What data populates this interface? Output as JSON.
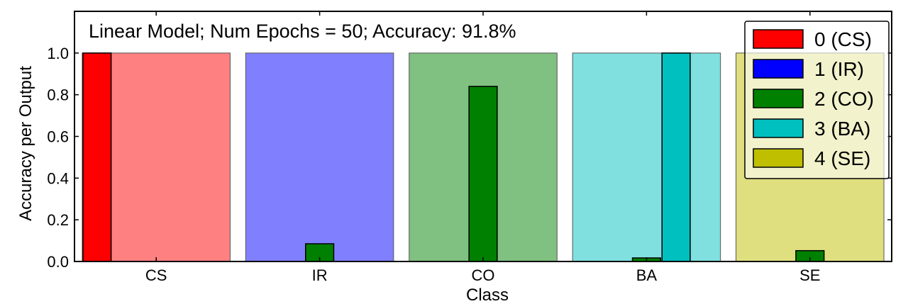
{
  "chart_data": {
    "type": "bar",
    "title": "Linear Model;  Num Epochs = 50;  Accuracy: 91.8%",
    "xlabel": "Class",
    "ylabel": "Accuracy per Output",
    "ylim": [
      0,
      1.2
    ],
    "yticks": [
      "0.0",
      "0.2",
      "0.4",
      "0.6",
      "0.8",
      "1.0"
    ],
    "categories": [
      "CS",
      "IR",
      "CO",
      "BA",
      "SE"
    ],
    "background_bars": {
      "values": [
        1.0,
        1.0,
        1.0,
        1.0,
        1.0
      ],
      "colors": [
        "#ff8080",
        "#8080ff",
        "#80c080",
        "#80dfdf",
        "#dfdf80"
      ]
    },
    "series": [
      {
        "name": "0 (CS)",
        "color": "#ff0000",
        "values": [
          1.0,
          0.0,
          0.0,
          0.0,
          0.0
        ]
      },
      {
        "name": "1 (IR)",
        "color": "#0000ff",
        "values": [
          0.0,
          0.0,
          0.0,
          0.0,
          0.0
        ]
      },
      {
        "name": "2 (CO)",
        "color": "#008000",
        "values": [
          0.0,
          0.085,
          0.84,
          0.017,
          0.052
        ]
      },
      {
        "name": "3 (BA)",
        "color": "#00bfbf",
        "values": [
          0.0,
          0.0,
          0.0,
          1.0,
          0.0
        ]
      },
      {
        "name": "4 (SE)",
        "color": "#bfbf00",
        "values": [
          0.0,
          0.0,
          0.0,
          0.0,
          0.0
        ]
      }
    ],
    "grid": false,
    "legend_position": "top-right"
  }
}
